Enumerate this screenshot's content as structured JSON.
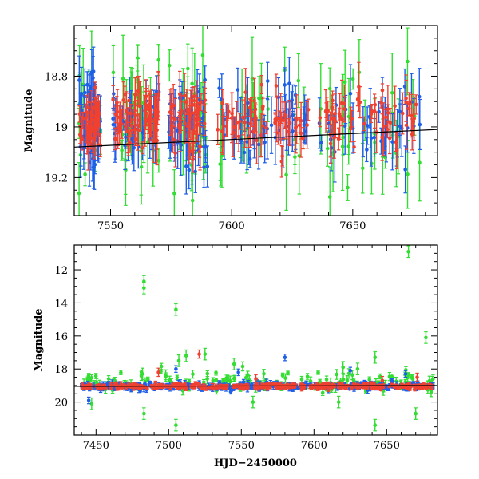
{
  "chart_data": [
    {
      "id": "top",
      "type": "scatter",
      "title": "",
      "xlabel": "",
      "ylabel": "Magnitude",
      "xlim": [
        7535,
        7685
      ],
      "ylim": [
        19.35,
        18.6
      ],
      "y_inverted": true,
      "x_ticks": [
        7550,
        7600,
        7650
      ],
      "y_ticks": [
        18.8,
        19,
        19.2
      ],
      "x_tick_labels": [
        "7550",
        "7600",
        "7650"
      ],
      "y_tick_labels": [
        "18.8",
        "19",
        "19.2"
      ],
      "trend_line": {
        "x": [
          7535,
          7685
        ],
        "y": [
          19.08,
          19.01
        ],
        "color": "#000000"
      },
      "series": [
        {
          "color": "#33dd33",
          "seed": 11,
          "count": 120,
          "x_range": [
            7537,
            7683
          ],
          "center": 19.0,
          "scatter": 0.22,
          "err_min": 0.04,
          "err_max": 0.18
        },
        {
          "color": "#1f5fe8",
          "seed": 23,
          "count": 220,
          "x_range": [
            7537,
            7683
          ],
          "center": 18.98,
          "scatter": 0.13,
          "err_min": 0.03,
          "err_max": 0.12
        },
        {
          "color": "#f04030",
          "seed": 37,
          "count": 260,
          "x_range": [
            7537,
            7683
          ],
          "center": 18.97,
          "scatter": 0.1,
          "err_min": 0.02,
          "err_max": 0.1
        }
      ],
      "observing_windows": [
        [
          7537,
          7546
        ],
        [
          7551,
          7570
        ],
        [
          7574,
          7590
        ],
        [
          7594,
          7632
        ],
        [
          7636,
          7678
        ]
      ]
    },
    {
      "id": "bottom",
      "type": "scatter",
      "title": "",
      "xlabel": "HJD−2450000",
      "ylabel": "Magnitude",
      "xlim": [
        7435,
        7685
      ],
      "ylim": [
        22,
        10.5
      ],
      "y_inverted": true,
      "x_ticks": [
        7450,
        7500,
        7550,
        7600,
        7650
      ],
      "y_ticks": [
        12,
        14,
        16,
        18,
        20
      ],
      "x_tick_labels": [
        "7450",
        "7500",
        "7550",
        "7600",
        "7650"
      ],
      "y_tick_labels": [
        "12",
        "14",
        "16",
        "18",
        "20"
      ],
      "trend_line": {
        "x": [
          7435,
          7685
        ],
        "y": [
          19.05,
          19.0
        ],
        "color": "#000000"
      },
      "outliers_green": [
        {
          "x": 7483,
          "y": 12.7
        },
        {
          "x": 7483,
          "y": 13.1
        },
        {
          "x": 7505,
          "y": 14.4
        },
        {
          "x": 7507,
          "y": 17.5
        },
        {
          "x": 7512,
          "y": 17.2
        },
        {
          "x": 7482,
          "y": 18.3
        },
        {
          "x": 7498,
          "y": 18.4
        },
        {
          "x": 7545,
          "y": 17.7
        },
        {
          "x": 7525,
          "y": 17.1
        },
        {
          "x": 7642,
          "y": 17.3
        },
        {
          "x": 7677,
          "y": 16.1
        },
        {
          "x": 7665,
          "y": 10.9
        },
        {
          "x": 7670,
          "y": 20.7
        },
        {
          "x": 7483,
          "y": 20.7
        },
        {
          "x": 7505,
          "y": 21.4
        },
        {
          "x": 7642,
          "y": 21.4
        },
        {
          "x": 7447,
          "y": 20.1
        },
        {
          "x": 7558,
          "y": 20.0
        },
        {
          "x": 7617,
          "y": 20.0
        },
        {
          "x": 7620,
          "y": 17.9
        },
        {
          "x": 7630,
          "y": 18.0
        }
      ],
      "outliers_red": [
        {
          "x": 7521,
          "y": 17.1
        },
        {
          "x": 7493,
          "y": 18.2
        },
        {
          "x": 7647,
          "y": 18.7
        },
        {
          "x": 7671,
          "y": 18.5
        },
        {
          "x": 7560,
          "y": 18.6
        }
      ],
      "outliers_blue": [
        {
          "x": 7580,
          "y": 17.3
        },
        {
          "x": 7445,
          "y": 19.9
        },
        {
          "x": 7505,
          "y": 18.0
        },
        {
          "x": 7548,
          "y": 18.2
        },
        {
          "x": 7625,
          "y": 18.1
        },
        {
          "x": 7663,
          "y": 18.3
        }
      ],
      "series": [
        {
          "color": "#33dd33",
          "seed": 51,
          "count": 140,
          "x_range": [
            7440,
            7682
          ],
          "center": 18.8,
          "scatter": 0.5,
          "err_min": 0.1,
          "err_max": 0.3
        },
        {
          "color": "#1f5fe8",
          "seed": 63,
          "count": 300,
          "x_range": [
            7440,
            7682
          ],
          "center": 19.05,
          "scatter": 0.18,
          "err_min": 0.05,
          "err_max": 0.2
        },
        {
          "color": "#f04030",
          "seed": 77,
          "count": 340,
          "x_range": [
            7440,
            7682
          ],
          "center": 19.05,
          "scatter": 0.12,
          "err_min": 0.05,
          "err_max": 0.15
        }
      ]
    }
  ]
}
